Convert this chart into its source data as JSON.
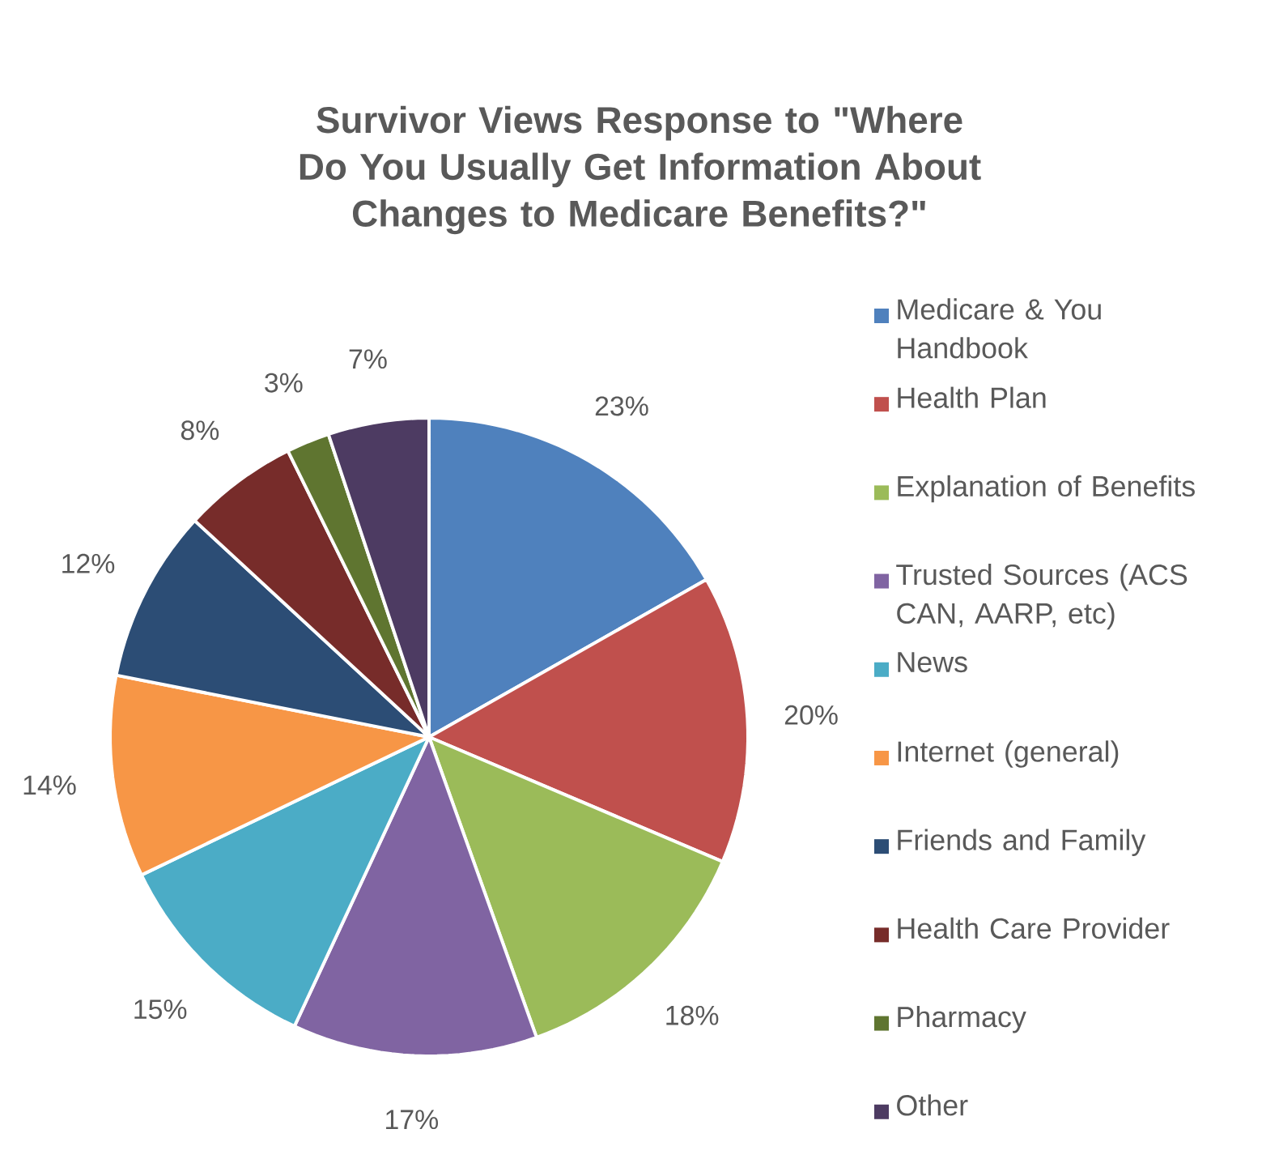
{
  "chart_data": {
    "type": "pie",
    "title": "Survivor Views Response to \"Where Do You Usually Get Information About Changes to Medicare Benefits?\"",
    "categories": [
      "Medicare & You Handbook",
      "Health Plan",
      "Explanation of Benefits",
      "Trusted Sources (ACS CAN, AARP, etc)",
      "News",
      "Internet (general)",
      "Friends and Family",
      "Health Care Provider",
      "Pharmacy",
      "Other"
    ],
    "values": [
      23,
      20,
      18,
      17,
      15,
      14,
      12,
      8,
      3,
      7
    ],
    "value_labels": [
      "23%",
      "20%",
      "18%",
      "17%",
      "15%",
      "14%",
      "12%",
      "8%",
      "3%",
      "7%"
    ],
    "colors": [
      "#4f81bd",
      "#c0504d",
      "#9bbb59",
      "#8064a2",
      "#4bacc6",
      "#f79646",
      "#2c4d75",
      "#772c2a",
      "#5f7530",
      "#4d3b62"
    ],
    "legend": "right"
  }
}
